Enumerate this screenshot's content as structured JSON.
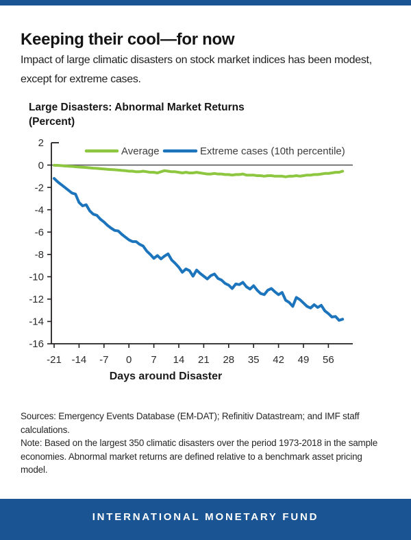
{
  "header": {
    "title": "Keeping their cool—for now",
    "subtitle": "Impact of large climatic disasters on stock market indices has been modest,\nexcept for extreme cases."
  },
  "chart": {
    "title": "Large Disasters: Abnormal Market Returns",
    "unit": "(Percent)"
  },
  "chart_data": {
    "type": "line",
    "title": "Large Disasters: Abnormal Market Returns (Percent)",
    "xlabel": "Days around Disaster",
    "ylabel": "Percent",
    "xlim": [
      -21,
      60
    ],
    "ylim": [
      -16,
      2
    ],
    "x_ticks": [
      -21,
      -14,
      -7,
      0,
      7,
      14,
      21,
      28,
      35,
      42,
      49,
      56
    ],
    "y_ticks": [
      2,
      0,
      -2,
      -4,
      -6,
      -8,
      -10,
      -12,
      -14,
      -16
    ],
    "grid": false,
    "zero_line": true,
    "legend_position": "top-inside",
    "x": [
      -21,
      -20,
      -19,
      -18,
      -17,
      -16,
      -15,
      -14,
      -13,
      -12,
      -11,
      -10,
      -9,
      -8,
      -7,
      -6,
      -5,
      -4,
      -3,
      -2,
      -1,
      0,
      1,
      2,
      3,
      4,
      5,
      6,
      7,
      8,
      9,
      10,
      11,
      12,
      13,
      14,
      15,
      16,
      17,
      18,
      19,
      20,
      21,
      22,
      23,
      24,
      25,
      26,
      27,
      28,
      29,
      30,
      31,
      32,
      33,
      34,
      35,
      36,
      37,
      38,
      39,
      40,
      41,
      42,
      43,
      44,
      45,
      46,
      47,
      48,
      49,
      50,
      51,
      52,
      53,
      54,
      55,
      56,
      57,
      58,
      59,
      60
    ],
    "series": [
      {
        "name": "Average",
        "color": "#8dc63f",
        "values": [
          -0.02,
          -0.03,
          -0.05,
          -0.08,
          -0.1,
          -0.12,
          -0.15,
          -0.18,
          -0.2,
          -0.22,
          -0.25,
          -0.28,
          -0.3,
          -0.33,
          -0.35,
          -0.38,
          -0.4,
          -0.42,
          -0.45,
          -0.48,
          -0.5,
          -0.55,
          -0.55,
          -0.6,
          -0.6,
          -0.55,
          -0.6,
          -0.65,
          -0.65,
          -0.7,
          -0.6,
          -0.5,
          -0.55,
          -0.6,
          -0.6,
          -0.65,
          -0.7,
          -0.65,
          -0.7,
          -0.7,
          -0.65,
          -0.7,
          -0.75,
          -0.8,
          -0.8,
          -0.75,
          -0.8,
          -0.8,
          -0.85,
          -0.85,
          -0.9,
          -0.85,
          -0.85,
          -0.8,
          -0.9,
          -0.9,
          -0.9,
          -0.95,
          -0.95,
          -1.0,
          -0.95,
          -0.95,
          -1.0,
          -1.0,
          -1.0,
          -1.05,
          -1.0,
          -1.0,
          -0.95,
          -1.0,
          -0.95,
          -0.9,
          -0.9,
          -0.85,
          -0.85,
          -0.8,
          -0.75,
          -0.75,
          -0.7,
          -0.65,
          -0.65,
          -0.55
        ]
      },
      {
        "name": "Extreme cases (10th percentile)",
        "color": "#1b74bc",
        "values": [
          -1.2,
          -1.5,
          -1.75,
          -2.0,
          -2.25,
          -2.5,
          -2.6,
          -3.35,
          -3.65,
          -3.55,
          -4.1,
          -4.4,
          -4.5,
          -4.85,
          -5.1,
          -5.4,
          -5.65,
          -5.85,
          -5.9,
          -6.2,
          -6.45,
          -6.7,
          -6.85,
          -6.85,
          -7.1,
          -7.25,
          -7.7,
          -8.0,
          -8.35,
          -8.1,
          -8.4,
          -8.15,
          -7.95,
          -8.5,
          -8.8,
          -9.15,
          -9.6,
          -9.3,
          -9.45,
          -9.95,
          -9.4,
          -9.7,
          -9.95,
          -10.2,
          -9.9,
          -9.75,
          -10.15,
          -10.3,
          -10.6,
          -10.75,
          -11.05,
          -10.65,
          -10.7,
          -10.5,
          -10.9,
          -11.1,
          -10.8,
          -11.2,
          -11.5,
          -11.6,
          -11.2,
          -11.05,
          -11.35,
          -11.6,
          -11.4,
          -12.1,
          -12.3,
          -12.65,
          -11.85,
          -12.05,
          -12.35,
          -12.65,
          -12.8,
          -12.5,
          -12.75,
          -12.55,
          -13.05,
          -13.3,
          -13.6,
          -13.55,
          -13.9,
          -13.8
        ]
      }
    ]
  },
  "notes": {
    "sources": "Sources: Emergency Events Database (EM-DAT); Refinitiv Datastream; and IMF staff\ncalculations.",
    "note": "Note: Based on the largest 350 climatic disasters over the period 1973-2018 in the sample\neconomies. Abnormal market returns are defined relative to a benchmark asset pricing\nmodel."
  },
  "footer": {
    "label": "INTERNATIONAL MONETARY FUND"
  },
  "colors": {
    "accent_blue": "#1a5493",
    "line_green": "#8dc63f",
    "line_blue": "#1b74bc",
    "axis_color": "#231f20",
    "zero_line_gray": "#58595b"
  }
}
